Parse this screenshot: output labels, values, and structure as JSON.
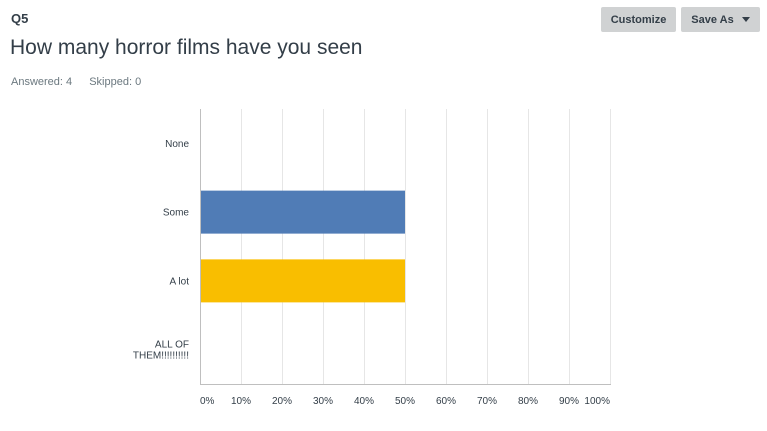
{
  "header": {
    "question_number": "Q5",
    "question_title": "How many horror films have you seen",
    "answered": "Answered: 4",
    "skipped": "Skipped: 0"
  },
  "toolbar": {
    "customize_label": "Customize",
    "save_as_label": "Save As"
  },
  "chart_data": {
    "type": "bar",
    "orientation": "horizontal",
    "categories": [
      "None",
      "Some",
      "A lot",
      "ALL OF THEM!!!!!!!!!!"
    ],
    "category_lines": [
      [
        "None"
      ],
      [
        "Some"
      ],
      [
        "A lot"
      ],
      [
        "ALL OF",
        "THEM!!!!!!!!!!"
      ]
    ],
    "values": [
      0,
      50,
      50,
      0
    ],
    "bar_colors": [
      "#507cb6",
      "#507cb6",
      "#f9be00",
      "#507cb6"
    ],
    "x_ticks": [
      0,
      10,
      20,
      30,
      40,
      50,
      60,
      70,
      80,
      90,
      100
    ],
    "x_tick_labels": [
      "0%",
      "10%",
      "20%",
      "30%",
      "40%",
      "50%",
      "60%",
      "70%",
      "80%",
      "90%",
      "100%"
    ],
    "xlim": [
      0,
      100
    ],
    "grid": true,
    "title": "",
    "xlabel": "",
    "ylabel": ""
  }
}
